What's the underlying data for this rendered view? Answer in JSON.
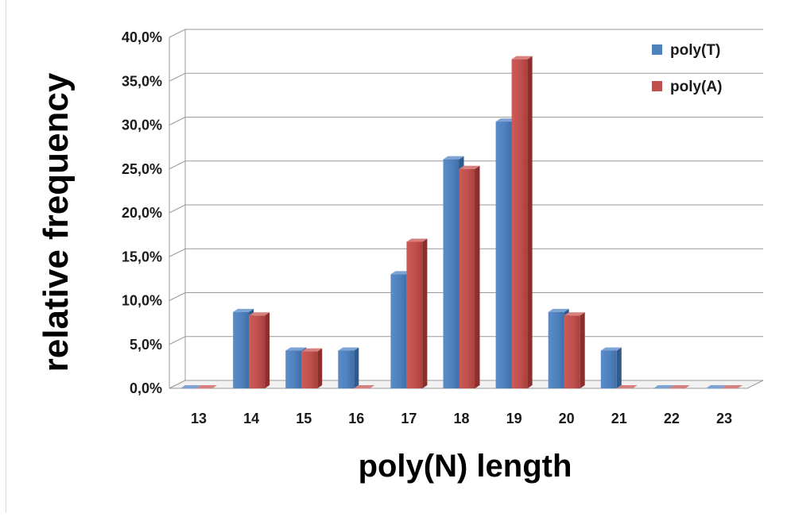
{
  "chart_data": {
    "type": "bar",
    "style": "3d-clustered",
    "categories": [
      "13",
      "14",
      "15",
      "16",
      "17",
      "18",
      "19",
      "20",
      "21",
      "22",
      "23"
    ],
    "series": [
      {
        "name": "poly(T)",
        "color": "#4F81BD",
        "values": [
          0.0,
          8.7,
          4.3,
          4.3,
          13.0,
          26.1,
          30.4,
          8.7,
          4.3,
          0.0,
          0.0
        ]
      },
      {
        "name": "poly(A)",
        "color": "#C0504D",
        "values": [
          0.0,
          8.3,
          4.2,
          0.0,
          16.7,
          25.0,
          37.5,
          8.3,
          0.0,
          0.0,
          0.0
        ]
      }
    ],
    "xlabel": "poly(N) length",
    "ylabel": "relative frequency",
    "ylim": [
      0,
      40
    ],
    "yticks": [
      "0,0%",
      "5,0%",
      "10,0%",
      "15,0%",
      "20,0%",
      "25,0%",
      "30,0%",
      "35,0%",
      "40,0%"
    ],
    "grid": true,
    "legend_position": "top-right"
  }
}
